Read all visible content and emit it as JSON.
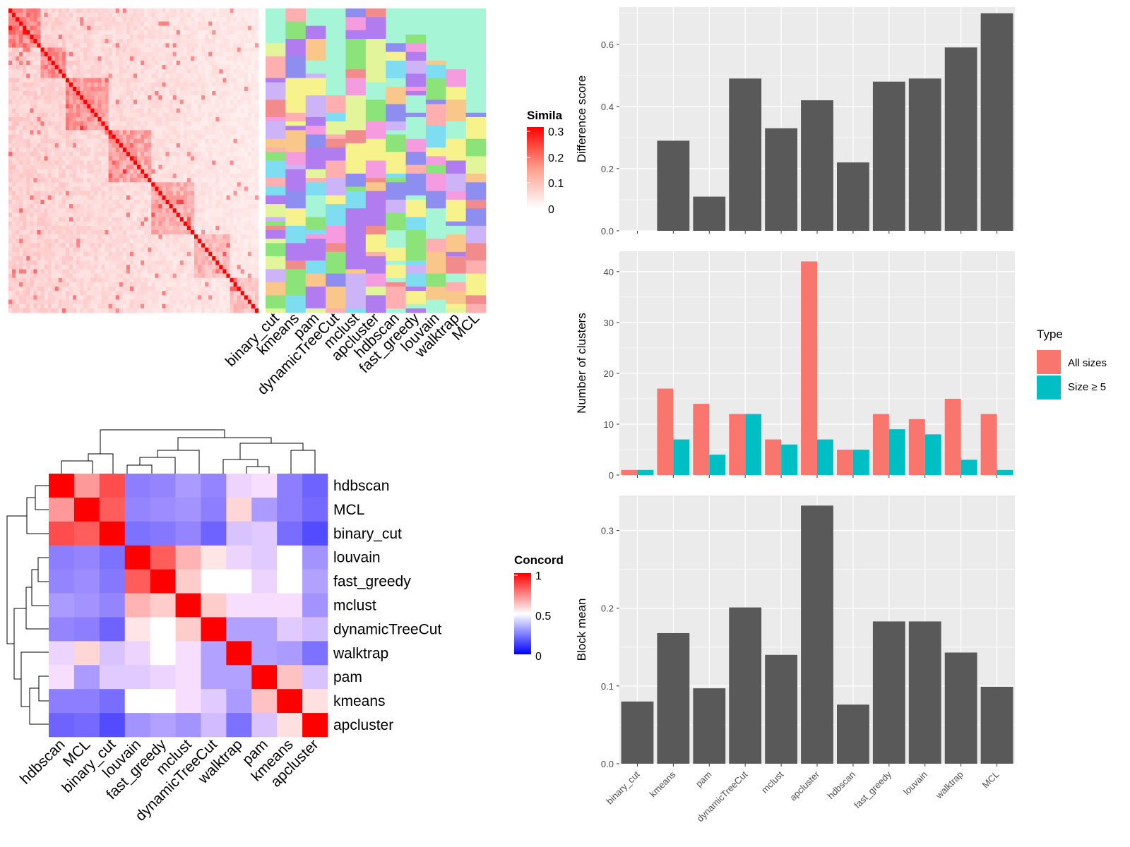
{
  "colors": {
    "panel_bg": "#EBEBEB",
    "grid": "#FFFFFF",
    "bar_gray": "#595959",
    "all_sizes": "#F8766D",
    "size5": "#00BFC4",
    "similarity_high": "#FF0000",
    "concordance_low": "#0000FF"
  },
  "similarity_legend": {
    "title": "Simila",
    "ticks": [
      "0.3",
      "0.2",
      "0.1",
      "0"
    ]
  },
  "concordance_legend": {
    "title": "Concord",
    "ticks": [
      "1",
      "0.5",
      "0"
    ]
  },
  "annotation_columns": [
    "binary_cut",
    "kmeans",
    "pam",
    "dynamicTreeCut",
    "mclust",
    "apcluster",
    "hdbscan",
    "fast_greedy",
    "louvain",
    "walktrap",
    "MCL"
  ],
  "concordance_order": [
    "hdbscan",
    "MCL",
    "binary_cut",
    "louvain",
    "fast_greedy",
    "mclust",
    "dynamicTreeCut",
    "walktrap",
    "pam",
    "kmeans",
    "apcluster"
  ],
  "concordance_matrix": [
    [
      1.0,
      0.7,
      0.85,
      0.2,
      0.22,
      0.28,
      0.22,
      0.45,
      0.48,
      0.2,
      0.12
    ],
    [
      0.7,
      1.0,
      0.82,
      0.22,
      0.24,
      0.26,
      0.2,
      0.58,
      0.28,
      0.2,
      0.14
    ],
    [
      0.85,
      0.82,
      1.0,
      0.16,
      0.18,
      0.22,
      0.12,
      0.4,
      0.42,
      0.15,
      0.05
    ],
    [
      0.2,
      0.22,
      0.16,
      1.0,
      0.82,
      0.65,
      0.55,
      0.45,
      0.42,
      0.5,
      0.26
    ],
    [
      0.22,
      0.24,
      0.18,
      0.82,
      1.0,
      0.6,
      0.5,
      0.5,
      0.45,
      0.5,
      0.3
    ],
    [
      0.28,
      0.26,
      0.22,
      0.65,
      0.6,
      1.0,
      0.6,
      0.48,
      0.48,
      0.48,
      0.26
    ],
    [
      0.22,
      0.2,
      0.12,
      0.55,
      0.5,
      0.6,
      1.0,
      0.3,
      0.3,
      0.42,
      0.38
    ],
    [
      0.45,
      0.58,
      0.4,
      0.45,
      0.5,
      0.48,
      0.3,
      1.0,
      0.3,
      0.28,
      0.16
    ],
    [
      0.48,
      0.28,
      0.42,
      0.42,
      0.45,
      0.48,
      0.3,
      0.3,
      1.0,
      0.62,
      0.4
    ],
    [
      0.2,
      0.2,
      0.15,
      0.5,
      0.5,
      0.48,
      0.42,
      0.28,
      0.62,
      1.0,
      0.56
    ],
    [
      0.12,
      0.14,
      0.05,
      0.26,
      0.3,
      0.26,
      0.38,
      0.16,
      0.4,
      0.56,
      1.0
    ]
  ],
  "chart_data": [
    {
      "type": "bar",
      "categories": [
        "binary_cut",
        "kmeans",
        "pam",
        "dynamicTreeCut",
        "mclust",
        "apcluster",
        "hdbscan",
        "fast_greedy",
        "louvain",
        "walktrap",
        "MCL"
      ],
      "values": [
        0.0,
        0.29,
        0.11,
        0.49,
        0.33,
        0.42,
        0.22,
        0.48,
        0.49,
        0.59,
        0.7
      ],
      "xlabel": "",
      "ylabel": "Difference score",
      "ylim": [
        0,
        0.72
      ],
      "yticks": [
        "0.0",
        "0.2",
        "0.4",
        "0.6"
      ],
      "grid": true
    },
    {
      "type": "bar",
      "categories": [
        "binary_cut",
        "kmeans",
        "pam",
        "dynamicTreeCut",
        "mclust",
        "apcluster",
        "hdbscan",
        "fast_greedy",
        "louvain",
        "walktrap",
        "MCL"
      ],
      "series": [
        {
          "name": "All sizes",
          "values": [
            1,
            17,
            14,
            12,
            7,
            42,
            5,
            12,
            11,
            15,
            12
          ]
        },
        {
          "name": "Size ≥ 5",
          "values": [
            1,
            7,
            4,
            12,
            6,
            7,
            5,
            9,
            8,
            3,
            1
          ]
        }
      ],
      "xlabel": "",
      "ylabel": "Number of clusters",
      "ylim": [
        0,
        44
      ],
      "yticks": [
        "0",
        "10",
        "20",
        "30",
        "40"
      ],
      "legend": {
        "title": "Type",
        "position": "right"
      },
      "grid": true
    },
    {
      "type": "bar",
      "categories": [
        "binary_cut",
        "kmeans",
        "pam",
        "dynamicTreeCut",
        "mclust",
        "apcluster",
        "hdbscan",
        "fast_greedy",
        "louvain",
        "walktrap",
        "MCL"
      ],
      "values": [
        0.08,
        0.168,
        0.097,
        0.201,
        0.14,
        0.332,
        0.076,
        0.183,
        0.183,
        0.143,
        0.099
      ],
      "xlabel": "",
      "ylabel": "Block mean",
      "ylim": [
        0,
        0.345
      ],
      "yticks": [
        "0.0",
        "0.1",
        "0.2",
        "0.3"
      ],
      "grid": true
    }
  ]
}
